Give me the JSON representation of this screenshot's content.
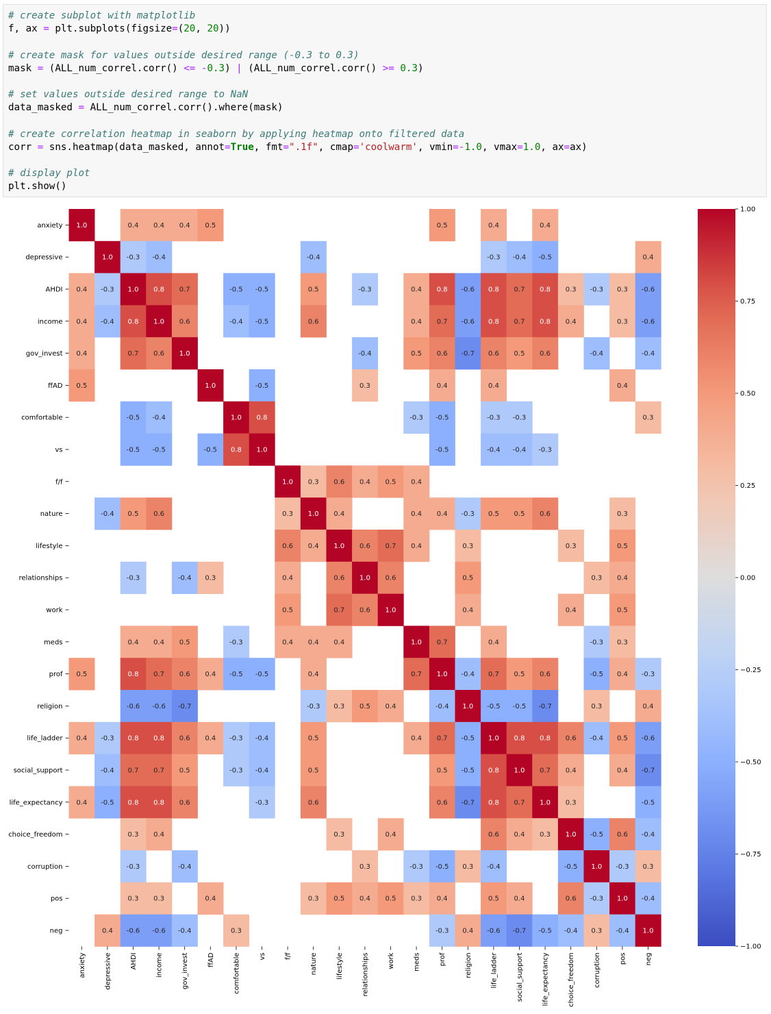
{
  "code": {
    "lines": [
      [
        {
          "t": "# create subplot with matplotlib",
          "c": "c-com"
        }
      ],
      [
        {
          "t": "f, ax "
        },
        {
          "t": "=",
          "c": "c-op"
        },
        {
          "t": " plt.subplots(figsize"
        },
        {
          "t": "=",
          "c": "c-op"
        },
        {
          "t": "("
        },
        {
          "t": "20",
          "c": "c-num"
        },
        {
          "t": ", "
        },
        {
          "t": "20",
          "c": "c-num"
        },
        {
          "t": "))"
        }
      ],
      [],
      [
        {
          "t": "# create mask for values outside desired range (-0.3 to 0.3)",
          "c": "c-com"
        }
      ],
      [
        {
          "t": "mask "
        },
        {
          "t": "=",
          "c": "c-op"
        },
        {
          "t": " (ALL_num_correl.corr() "
        },
        {
          "t": "<=",
          "c": "c-op"
        },
        {
          "t": " "
        },
        {
          "t": "-",
          "c": "c-op"
        },
        {
          "t": "0.3",
          "c": "c-num"
        },
        {
          "t": ") "
        },
        {
          "t": "|",
          "c": "c-op"
        },
        {
          "t": " (ALL_num_correl.corr() "
        },
        {
          "t": ">=",
          "c": "c-op"
        },
        {
          "t": " "
        },
        {
          "t": "0.3",
          "c": "c-num"
        },
        {
          "t": ")"
        }
      ],
      [],
      [
        {
          "t": "# set values outside desired range to NaN",
          "c": "c-com"
        }
      ],
      [
        {
          "t": "data_masked "
        },
        {
          "t": "=",
          "c": "c-op"
        },
        {
          "t": " ALL_num_correl.corr().where(mask)"
        }
      ],
      [],
      [
        {
          "t": "# create correlation heatmap in seaborn by applying heatmap onto filtered data",
          "c": "c-com"
        }
      ],
      [
        {
          "t": "corr "
        },
        {
          "t": "=",
          "c": "c-op"
        },
        {
          "t": " sns.heatmap(data_masked, annot"
        },
        {
          "t": "=",
          "c": "c-op"
        },
        {
          "t": "True",
          "c": "c-kw"
        },
        {
          "t": ", fmt"
        },
        {
          "t": "=",
          "c": "c-op"
        },
        {
          "t": "\".1f\"",
          "c": "c-str"
        },
        {
          "t": ", cmap"
        },
        {
          "t": "=",
          "c": "c-op"
        },
        {
          "t": "'coolwarm'",
          "c": "c-str"
        },
        {
          "t": ", vmin"
        },
        {
          "t": "=-",
          "c": "c-op"
        },
        {
          "t": "1.0",
          "c": "c-num"
        },
        {
          "t": ", vmax"
        },
        {
          "t": "=",
          "c": "c-op"
        },
        {
          "t": "1.0",
          "c": "c-num"
        },
        {
          "t": ", ax"
        },
        {
          "t": "=",
          "c": "c-op"
        },
        {
          "t": "ax)"
        }
      ],
      [],
      [
        {
          "t": "# display plot",
          "c": "c-com"
        }
      ],
      [
        {
          "t": "plt.show()"
        }
      ]
    ]
  },
  "chart_data": {
    "type": "heatmap",
    "colormap": "coolwarm",
    "vmin": -1.0,
    "vmax": 1.0,
    "annot_format": ".1f",
    "labels": [
      "anxiety",
      "depressive",
      "AHDI",
      "income",
      "gov_invest",
      "ffAD",
      "comfortable",
      "vs",
      "f/f",
      "nature",
      "lifestyle",
      "relationships",
      "work",
      "meds",
      "prof",
      "religion",
      "life_ladder",
      "social_support",
      "life_expectancy",
      "choice_freedom",
      "corruption",
      "pos",
      "neg"
    ],
    "matrix": [
      [
        1.0,
        null,
        0.4,
        0.4,
        0.4,
        0.5,
        null,
        null,
        null,
        null,
        null,
        null,
        null,
        null,
        0.5,
        null,
        0.4,
        null,
        0.4,
        null,
        null,
        null,
        null
      ],
      [
        null,
        1.0,
        -0.3,
        -0.4,
        null,
        null,
        null,
        null,
        null,
        -0.4,
        null,
        null,
        null,
        null,
        null,
        null,
        -0.3,
        -0.4,
        -0.5,
        null,
        null,
        null,
        0.4
      ],
      [
        0.4,
        -0.3,
        1.0,
        0.8,
        0.7,
        null,
        -0.5,
        -0.5,
        null,
        0.5,
        null,
        -0.3,
        null,
        0.4,
        0.8,
        -0.6,
        0.8,
        0.7,
        0.8,
        0.3,
        -0.3,
        0.3,
        -0.6
      ],
      [
        0.4,
        -0.4,
        0.8,
        1.0,
        0.6,
        null,
        -0.4,
        -0.5,
        null,
        0.6,
        null,
        null,
        null,
        0.4,
        0.7,
        -0.6,
        0.8,
        0.7,
        0.8,
        0.4,
        null,
        0.3,
        -0.6
      ],
      [
        0.4,
        null,
        0.7,
        0.6,
        1.0,
        null,
        null,
        null,
        null,
        null,
        null,
        -0.4,
        null,
        0.5,
        0.6,
        -0.7,
        0.6,
        0.5,
        0.6,
        null,
        -0.4,
        null,
        -0.4
      ],
      [
        0.5,
        null,
        null,
        null,
        null,
        1.0,
        null,
        -0.5,
        null,
        null,
        null,
        0.3,
        null,
        null,
        0.4,
        null,
        0.4,
        null,
        null,
        null,
        null,
        0.4,
        null
      ],
      [
        null,
        null,
        -0.5,
        -0.4,
        null,
        null,
        1.0,
        0.8,
        null,
        null,
        null,
        null,
        null,
        -0.3,
        -0.5,
        null,
        -0.3,
        -0.3,
        null,
        null,
        null,
        null,
        0.3
      ],
      [
        null,
        null,
        -0.5,
        -0.5,
        null,
        -0.5,
        0.8,
        1.0,
        null,
        null,
        null,
        null,
        null,
        null,
        -0.5,
        null,
        -0.4,
        -0.4,
        -0.3,
        null,
        null,
        null,
        null
      ],
      [
        null,
        null,
        null,
        null,
        null,
        null,
        null,
        null,
        1.0,
        0.3,
        0.6,
        0.4,
        0.5,
        0.4,
        null,
        null,
        null,
        null,
        null,
        null,
        null,
        null,
        null
      ],
      [
        null,
        -0.4,
        0.5,
        0.6,
        null,
        null,
        null,
        null,
        0.3,
        1.0,
        0.4,
        null,
        null,
        0.4,
        0.4,
        -0.3,
        0.5,
        0.5,
        0.6,
        null,
        null,
        0.3,
        null
      ],
      [
        null,
        null,
        null,
        null,
        null,
        null,
        null,
        null,
        0.6,
        0.4,
        1.0,
        0.6,
        0.7,
        0.4,
        null,
        0.3,
        null,
        null,
        null,
        0.3,
        null,
        0.5,
        null
      ],
      [
        null,
        null,
        -0.3,
        null,
        -0.4,
        0.3,
        null,
        null,
        0.4,
        null,
        0.6,
        1.0,
        0.6,
        null,
        null,
        0.5,
        null,
        null,
        null,
        null,
        0.3,
        0.4,
        null
      ],
      [
        null,
        null,
        null,
        null,
        null,
        null,
        null,
        null,
        0.5,
        null,
        0.7,
        0.6,
        1.0,
        null,
        null,
        0.4,
        null,
        null,
        null,
        0.4,
        null,
        0.5,
        null
      ],
      [
        null,
        null,
        0.4,
        0.4,
        0.5,
        null,
        -0.3,
        null,
        0.4,
        0.4,
        0.4,
        null,
        null,
        1.0,
        0.7,
        null,
        0.4,
        null,
        null,
        null,
        -0.3,
        0.3,
        null
      ],
      [
        0.5,
        null,
        0.8,
        0.7,
        0.6,
        0.4,
        -0.5,
        -0.5,
        null,
        0.4,
        null,
        null,
        null,
        0.7,
        1.0,
        -0.4,
        0.7,
        0.5,
        0.6,
        null,
        -0.5,
        0.4,
        -0.3
      ],
      [
        null,
        null,
        -0.6,
        -0.6,
        -0.7,
        null,
        null,
        null,
        null,
        -0.3,
        0.3,
        0.5,
        0.4,
        null,
        -0.4,
        1.0,
        -0.5,
        -0.5,
        -0.7,
        null,
        0.3,
        null,
        0.4
      ],
      [
        0.4,
        -0.3,
        0.8,
        0.8,
        0.6,
        0.4,
        -0.3,
        -0.4,
        null,
        0.5,
        null,
        null,
        null,
        0.4,
        0.7,
        -0.5,
        1.0,
        0.8,
        0.8,
        0.6,
        -0.4,
        0.5,
        -0.6
      ],
      [
        null,
        -0.4,
        0.7,
        0.7,
        0.5,
        null,
        -0.3,
        -0.4,
        null,
        0.5,
        null,
        null,
        null,
        null,
        0.5,
        -0.5,
        0.8,
        1.0,
        0.7,
        0.4,
        null,
        0.4,
        -0.7
      ],
      [
        0.4,
        -0.5,
        0.8,
        0.8,
        0.6,
        null,
        null,
        -0.3,
        null,
        0.6,
        null,
        null,
        null,
        null,
        0.6,
        -0.7,
        0.8,
        0.7,
        1.0,
        0.3,
        null,
        null,
        -0.5
      ],
      [
        null,
        null,
        0.3,
        0.4,
        null,
        null,
        null,
        null,
        null,
        null,
        0.3,
        null,
        0.4,
        null,
        null,
        null,
        0.6,
        0.4,
        0.3,
        1.0,
        -0.5,
        0.6,
        -0.4
      ],
      [
        null,
        null,
        -0.3,
        null,
        -0.4,
        null,
        null,
        null,
        null,
        null,
        null,
        0.3,
        null,
        -0.3,
        -0.5,
        0.3,
        -0.4,
        null,
        null,
        -0.5,
        1.0,
        -0.3,
        0.3
      ],
      [
        null,
        null,
        0.3,
        0.3,
        null,
        0.4,
        null,
        null,
        null,
        0.3,
        0.5,
        0.4,
        0.5,
        0.3,
        0.4,
        null,
        0.5,
        0.4,
        null,
        0.6,
        -0.3,
        1.0,
        -0.4
      ],
      [
        null,
        0.4,
        -0.6,
        -0.6,
        -0.4,
        null,
        0.3,
        null,
        null,
        null,
        null,
        null,
        null,
        null,
        -0.3,
        0.4,
        -0.6,
        -0.7,
        -0.5,
        -0.4,
        0.3,
        -0.4,
        1.0
      ]
    ],
    "colorbar_ticks": [
      "1.00",
      "0.75",
      "0.50",
      "0.25",
      "0.00",
      "−0.25",
      "−0.50",
      "−0.75",
      "−1.00"
    ],
    "colorbar_tick_values": [
      1.0,
      0.75,
      0.5,
      0.25,
      0.0,
      -0.25,
      -0.5,
      -0.75,
      -1.0
    ]
  }
}
